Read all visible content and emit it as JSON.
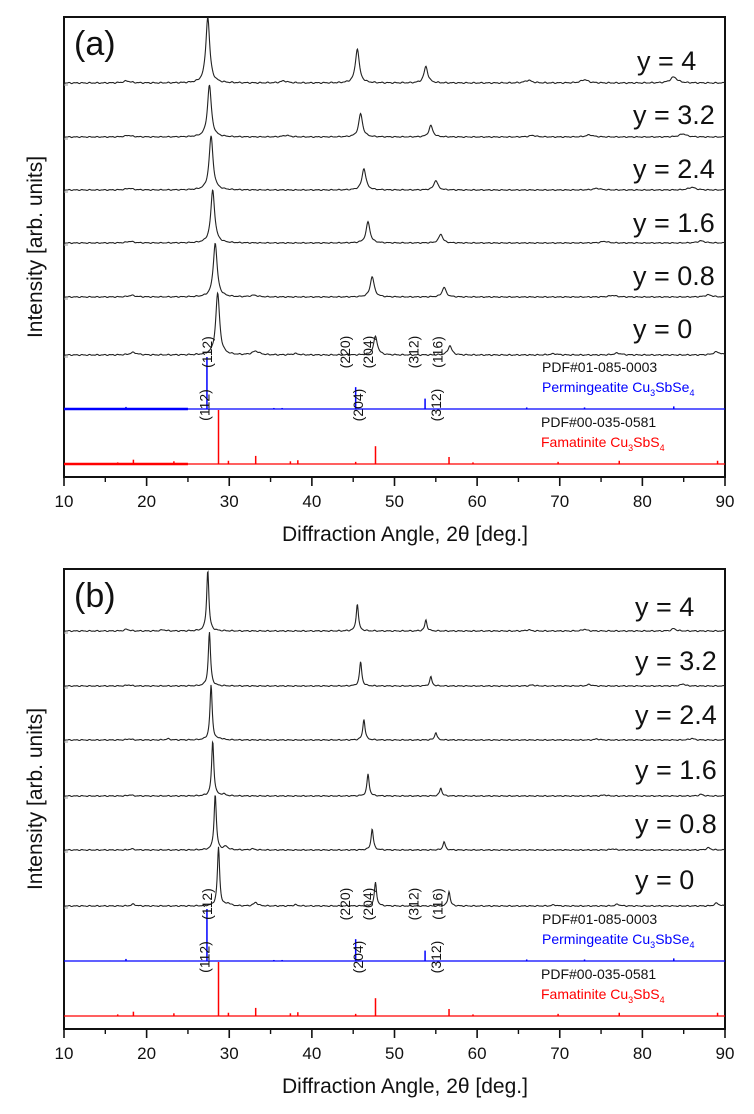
{
  "chart_data": [
    {
      "panel": "a",
      "type": "line",
      "title": "(a)",
      "xlabel": "Diffraction Angle, 2θ [deg.]",
      "ylabel": "Intensity [arb. units]",
      "xlim": [
        10,
        90
      ],
      "xticks": [
        10,
        20,
        30,
        40,
        50,
        60,
        70,
        80,
        90
      ],
      "xtick_labels": [
        "10",
        "20",
        "30",
        "40",
        "50",
        "60",
        "70",
        "80",
        "90"
      ],
      "grid": false,
      "series": [
        {
          "name": "y = 4",
          "peaks": [
            [
              17.6,
              0.03
            ],
            [
              27.4,
              1.0
            ],
            [
              36.6,
              0.03
            ],
            [
              45.5,
              0.52
            ],
            [
              53.8,
              0.25
            ],
            [
              66.2,
              0.04
            ],
            [
              73.0,
              0.05
            ],
            [
              83.8,
              0.09
            ]
          ]
        },
        {
          "name": "y = 3.2",
          "peaks": [
            [
              17.8,
              0.03
            ],
            [
              27.6,
              1.0
            ],
            [
              36.9,
              0.03
            ],
            [
              45.9,
              0.45
            ],
            [
              54.4,
              0.22
            ],
            [
              66.7,
              0.03
            ],
            [
              73.6,
              0.04
            ],
            [
              84.9,
              0.06
            ]
          ]
        },
        {
          "name": "y = 2.4",
          "peaks": [
            [
              17.9,
              0.03
            ],
            [
              27.8,
              1.0
            ],
            [
              46.3,
              0.4
            ],
            [
              55.0,
              0.18
            ],
            [
              74.5,
              0.03
            ],
            [
              86.0,
              0.05
            ]
          ]
        },
        {
          "name": "y = 1.6",
          "peaks": [
            [
              18.0,
              0.03
            ],
            [
              28.0,
              1.0
            ],
            [
              46.8,
              0.4
            ],
            [
              55.6,
              0.17
            ],
            [
              75.4,
              0.03
            ],
            [
              87.1,
              0.04
            ]
          ]
        },
        {
          "name": "y = 0.8",
          "peaks": [
            [
              18.2,
              0.03
            ],
            [
              28.3,
              1.0
            ],
            [
              33.0,
              0.03
            ],
            [
              47.3,
              0.38
            ],
            [
              56.0,
              0.18
            ],
            [
              76.4,
              0.03
            ],
            [
              88.0,
              0.04
            ]
          ]
        },
        {
          "name": "y = 0",
          "peaks": [
            [
              18.4,
              0.04
            ],
            [
              28.6,
              1.0
            ],
            [
              33.2,
              0.06
            ],
            [
              38.0,
              0.02
            ],
            [
              47.7,
              0.3
            ],
            [
              56.7,
              0.15
            ],
            [
              69.3,
              0.02
            ],
            [
              77.0,
              0.03
            ],
            [
              89.0,
              0.05
            ]
          ]
        }
      ],
      "references": [
        {
          "name": "PDF#01-085-0003",
          "phase": "Permingeatite Cu3SbSe4",
          "phase_parts": {
            "pre": "Permingeatite Cu",
            "sub1": "3",
            "mid": "SbSe",
            "sub2": "4"
          },
          "color": "#0000ff",
          "lines": [
            [
              15.6,
              0.01
            ],
            [
              17.5,
              0.04
            ],
            [
              22.3,
              0.01
            ],
            [
              24.0,
              0.01
            ],
            [
              27.3,
              1.0
            ],
            [
              35.4,
              0.02
            ],
            [
              36.4,
              0.02
            ],
            [
              45.3,
              0.42
            ],
            [
              53.7,
              0.2
            ],
            [
              66.0,
              0.03
            ],
            [
              73.0,
              0.03
            ],
            [
              83.8,
              0.05
            ]
          ],
          "labels": [
            {
              "x": 27.3,
              "text": "(112)"
            },
            {
              "x": 44.0,
              "text": "(220)"
            },
            {
              "x": 46.8,
              "text": "(204)"
            },
            {
              "x": 52.3,
              "text": "(312)"
            },
            {
              "x": 55.2,
              "text": "(116)"
            }
          ]
        },
        {
          "name": "PDF#00-035-0581",
          "phase": "Famatinite Cu3SbS4",
          "phase_parts": {
            "pre": "Famatinite Cu",
            "sub1": "3",
            "mid": "SbS",
            "sub2": "4"
          },
          "color": "#ff0000",
          "lines": [
            [
              16.5,
              0.03
            ],
            [
              18.4,
              0.08
            ],
            [
              23.3,
              0.05
            ],
            [
              28.7,
              1.0
            ],
            [
              29.9,
              0.06
            ],
            [
              33.2,
              0.15
            ],
            [
              37.4,
              0.05
            ],
            [
              38.3,
              0.07
            ],
            [
              45.3,
              0.04
            ],
            [
              47.7,
              0.33
            ],
            [
              56.6,
              0.13
            ],
            [
              59.5,
              0.03
            ],
            [
              69.8,
              0.04
            ],
            [
              77.2,
              0.06
            ],
            [
              89.1,
              0.06
            ]
          ],
          "labels": [
            {
              "x": 27.0,
              "text": "(112)"
            },
            {
              "x": 45.6,
              "text": "(204)"
            },
            {
              "x": 55.0,
              "text": "(312)"
            }
          ]
        }
      ]
    },
    {
      "panel": "b",
      "type": "line",
      "title": "(b)",
      "xlabel": "Diffraction Angle, 2θ [deg.]",
      "ylabel": "Intensity [arb. units]",
      "xlim": [
        10,
        90
      ],
      "xticks": [
        10,
        20,
        30,
        40,
        50,
        60,
        70,
        80,
        90
      ],
      "xtick_labels": [
        "10",
        "20",
        "30",
        "40",
        "50",
        "60",
        "70",
        "80",
        "90"
      ],
      "grid": false,
      "series": [
        {
          "name": "y = 4",
          "peaks": [
            [
              17.6,
              0.03
            ],
            [
              22.0,
              0.02
            ],
            [
              27.4,
              1.0
            ],
            [
              45.5,
              0.45
            ],
            [
              53.8,
              0.18
            ],
            [
              66.2,
              0.02
            ],
            [
              73.0,
              0.03
            ],
            [
              83.8,
              0.04
            ]
          ]
        },
        {
          "name": "y = 3.2",
          "peaks": [
            [
              17.8,
              0.02
            ],
            [
              27.6,
              1.0
            ],
            [
              45.9,
              0.45
            ],
            [
              54.4,
              0.17
            ],
            [
              66.7,
              0.02
            ],
            [
              73.6,
              0.03
            ],
            [
              84.9,
              0.04
            ]
          ]
        },
        {
          "name": "y = 2.4",
          "peaks": [
            [
              17.9,
              0.02
            ],
            [
              22.6,
              0.02
            ],
            [
              27.8,
              1.0
            ],
            [
              29.0,
              0.02
            ],
            [
              46.3,
              0.38
            ],
            [
              55.0,
              0.14
            ],
            [
              74.5,
              0.02
            ],
            [
              86.0,
              0.03
            ]
          ]
        },
        {
          "name": "y = 1.6",
          "peaks": [
            [
              18.0,
              0.02
            ],
            [
              28.0,
              1.0
            ],
            [
              29.3,
              0.03
            ],
            [
              46.8,
              0.4
            ],
            [
              55.6,
              0.15
            ],
            [
              75.4,
              0.02
            ],
            [
              87.1,
              0.03
            ]
          ]
        },
        {
          "name": "y = 0.8",
          "peaks": [
            [
              18.2,
              0.02
            ],
            [
              28.3,
              1.0
            ],
            [
              29.6,
              0.06
            ],
            [
              32.8,
              0.02
            ],
            [
              47.3,
              0.38
            ],
            [
              56.0,
              0.15
            ],
            [
              76.4,
              0.02
            ],
            [
              88.0,
              0.04
            ]
          ]
        },
        {
          "name": "y = 0",
          "peaks": [
            [
              18.4,
              0.03
            ],
            [
              28.7,
              1.0
            ],
            [
              29.9,
              0.04
            ],
            [
              33.2,
              0.06
            ],
            [
              38.0,
              0.02
            ],
            [
              47.7,
              0.4
            ],
            [
              56.6,
              0.25
            ],
            [
              69.3,
              0.02
            ],
            [
              77.0,
              0.03
            ],
            [
              89.0,
              0.05
            ]
          ]
        }
      ],
      "references": [
        {
          "name": "PDF#01-085-0003",
          "phase": "Permingeatite Cu3SbSe4",
          "phase_parts": {
            "pre": "Permingeatite Cu",
            "sub1": "3",
            "mid": "SbSe",
            "sub2": "4"
          },
          "color": "#0000ff",
          "lines": [
            [
              15.6,
              0.01
            ],
            [
              17.5,
              0.04
            ],
            [
              22.3,
              0.01
            ],
            [
              24.0,
              0.01
            ],
            [
              27.3,
              1.0
            ],
            [
              35.4,
              0.02
            ],
            [
              36.4,
              0.02
            ],
            [
              45.3,
              0.42
            ],
            [
              53.7,
              0.2
            ],
            [
              66.0,
              0.03
            ],
            [
              73.0,
              0.03
            ],
            [
              83.8,
              0.05
            ]
          ],
          "labels": [
            {
              "x": 27.3,
              "text": "(112)"
            },
            {
              "x": 44.0,
              "text": "(220)"
            },
            {
              "x": 46.8,
              "text": "(204)"
            },
            {
              "x": 52.3,
              "text": "(312)"
            },
            {
              "x": 55.2,
              "text": "(116)"
            }
          ]
        },
        {
          "name": "PDF#00-035-0581",
          "phase": "Famatinite Cu3SbS4",
          "phase_parts": {
            "pre": "Famatinite Cu",
            "sub1": "3",
            "mid": "SbS",
            "sub2": "4"
          },
          "color": "#ff0000",
          "lines": [
            [
              16.5,
              0.03
            ],
            [
              18.4,
              0.08
            ],
            [
              23.3,
              0.05
            ],
            [
              28.7,
              1.0
            ],
            [
              29.9,
              0.06
            ],
            [
              33.2,
              0.15
            ],
            [
              37.4,
              0.05
            ],
            [
              38.3,
              0.07
            ],
            [
              45.3,
              0.04
            ],
            [
              47.7,
              0.33
            ],
            [
              56.6,
              0.13
            ],
            [
              59.5,
              0.03
            ],
            [
              69.8,
              0.04
            ],
            [
              77.2,
              0.06
            ],
            [
              89.1,
              0.06
            ]
          ],
          "labels": [
            {
              "x": 27.0,
              "text": "(112)"
            },
            {
              "x": 45.6,
              "text": "(204)"
            },
            {
              "x": 55.0,
              "text": "(312)"
            }
          ]
        }
      ]
    }
  ]
}
